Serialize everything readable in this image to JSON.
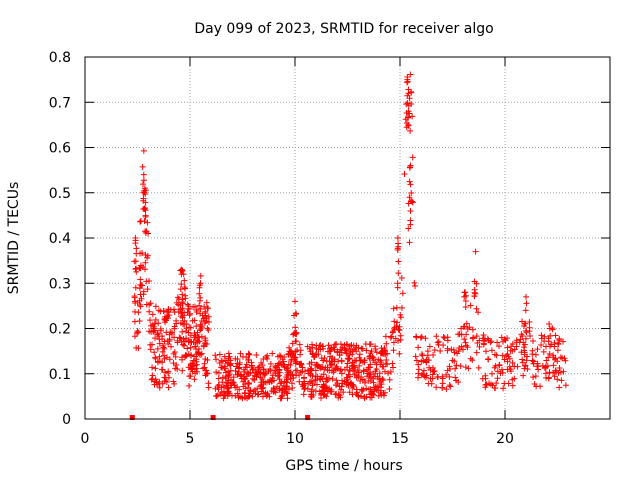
{
  "chart_data": {
    "type": "scatter",
    "title": "Day 099 of 2023, SRMTID for receiver algo",
    "xlabel": "GPS time / hours",
    "ylabel": "SRMTID / TECUs",
    "xlim": [
      0,
      25
    ],
    "ylim": [
      0,
      0.8
    ],
    "x_ticks": [
      0,
      5,
      10,
      15,
      20
    ],
    "y_ticks": [
      0,
      0.1,
      0.2,
      0.3,
      0.4,
      0.5,
      0.6,
      0.7,
      0.8
    ],
    "x_tick_labels": [
      "0",
      "5",
      "10",
      "15",
      "20"
    ],
    "y_tick_labels": [
      "0",
      "0.1",
      "0.2",
      "0.3",
      "0.4",
      "0.5",
      "0.6",
      "0.7",
      "0.8"
    ],
    "grid": true,
    "marker": "+",
    "marker_color": "#ff0000",
    "gap_marker_color": "#ff0000",
    "data_gaps_x": [
      2.25,
      6.1,
      10.6
    ],
    "segments": [
      {
        "x_start": 2.35,
        "x_end": 5.9,
        "base": 0.15,
        "spread": 0.09
      },
      {
        "x_start": 6.15,
        "x_end": 10.5,
        "base": 0.09,
        "spread": 0.05
      },
      {
        "x_start": 10.6,
        "x_end": 14.3,
        "base": 0.1,
        "spread": 0.06
      },
      {
        "x_start": 14.3,
        "x_end": 22.9,
        "base": 0.12,
        "spread": 0.06
      }
    ],
    "peaks": [
      {
        "x": 2.4,
        "y": 0.4
      },
      {
        "x": 2.8,
        "y": 0.54
      },
      {
        "x": 2.85,
        "y": 0.51
      },
      {
        "x": 4.6,
        "y": 0.33
      },
      {
        "x": 5.5,
        "y": 0.3
      },
      {
        "x": 10.0,
        "y": 0.26
      },
      {
        "x": 14.9,
        "y": 0.4
      },
      {
        "x": 15.35,
        "y": 0.75
      },
      {
        "x": 15.4,
        "y": 0.72
      },
      {
        "x": 15.5,
        "y": 0.56
      },
      {
        "x": 15.45,
        "y": 0.49
      },
      {
        "x": 18.6,
        "y": 0.37
      },
      {
        "x": 18.1,
        "y": 0.28
      },
      {
        "x": 21.0,
        "y": 0.27
      },
      {
        "x": 22.1,
        "y": 0.21
      }
    ],
    "point_count": 1400,
    "seed": 99
  }
}
